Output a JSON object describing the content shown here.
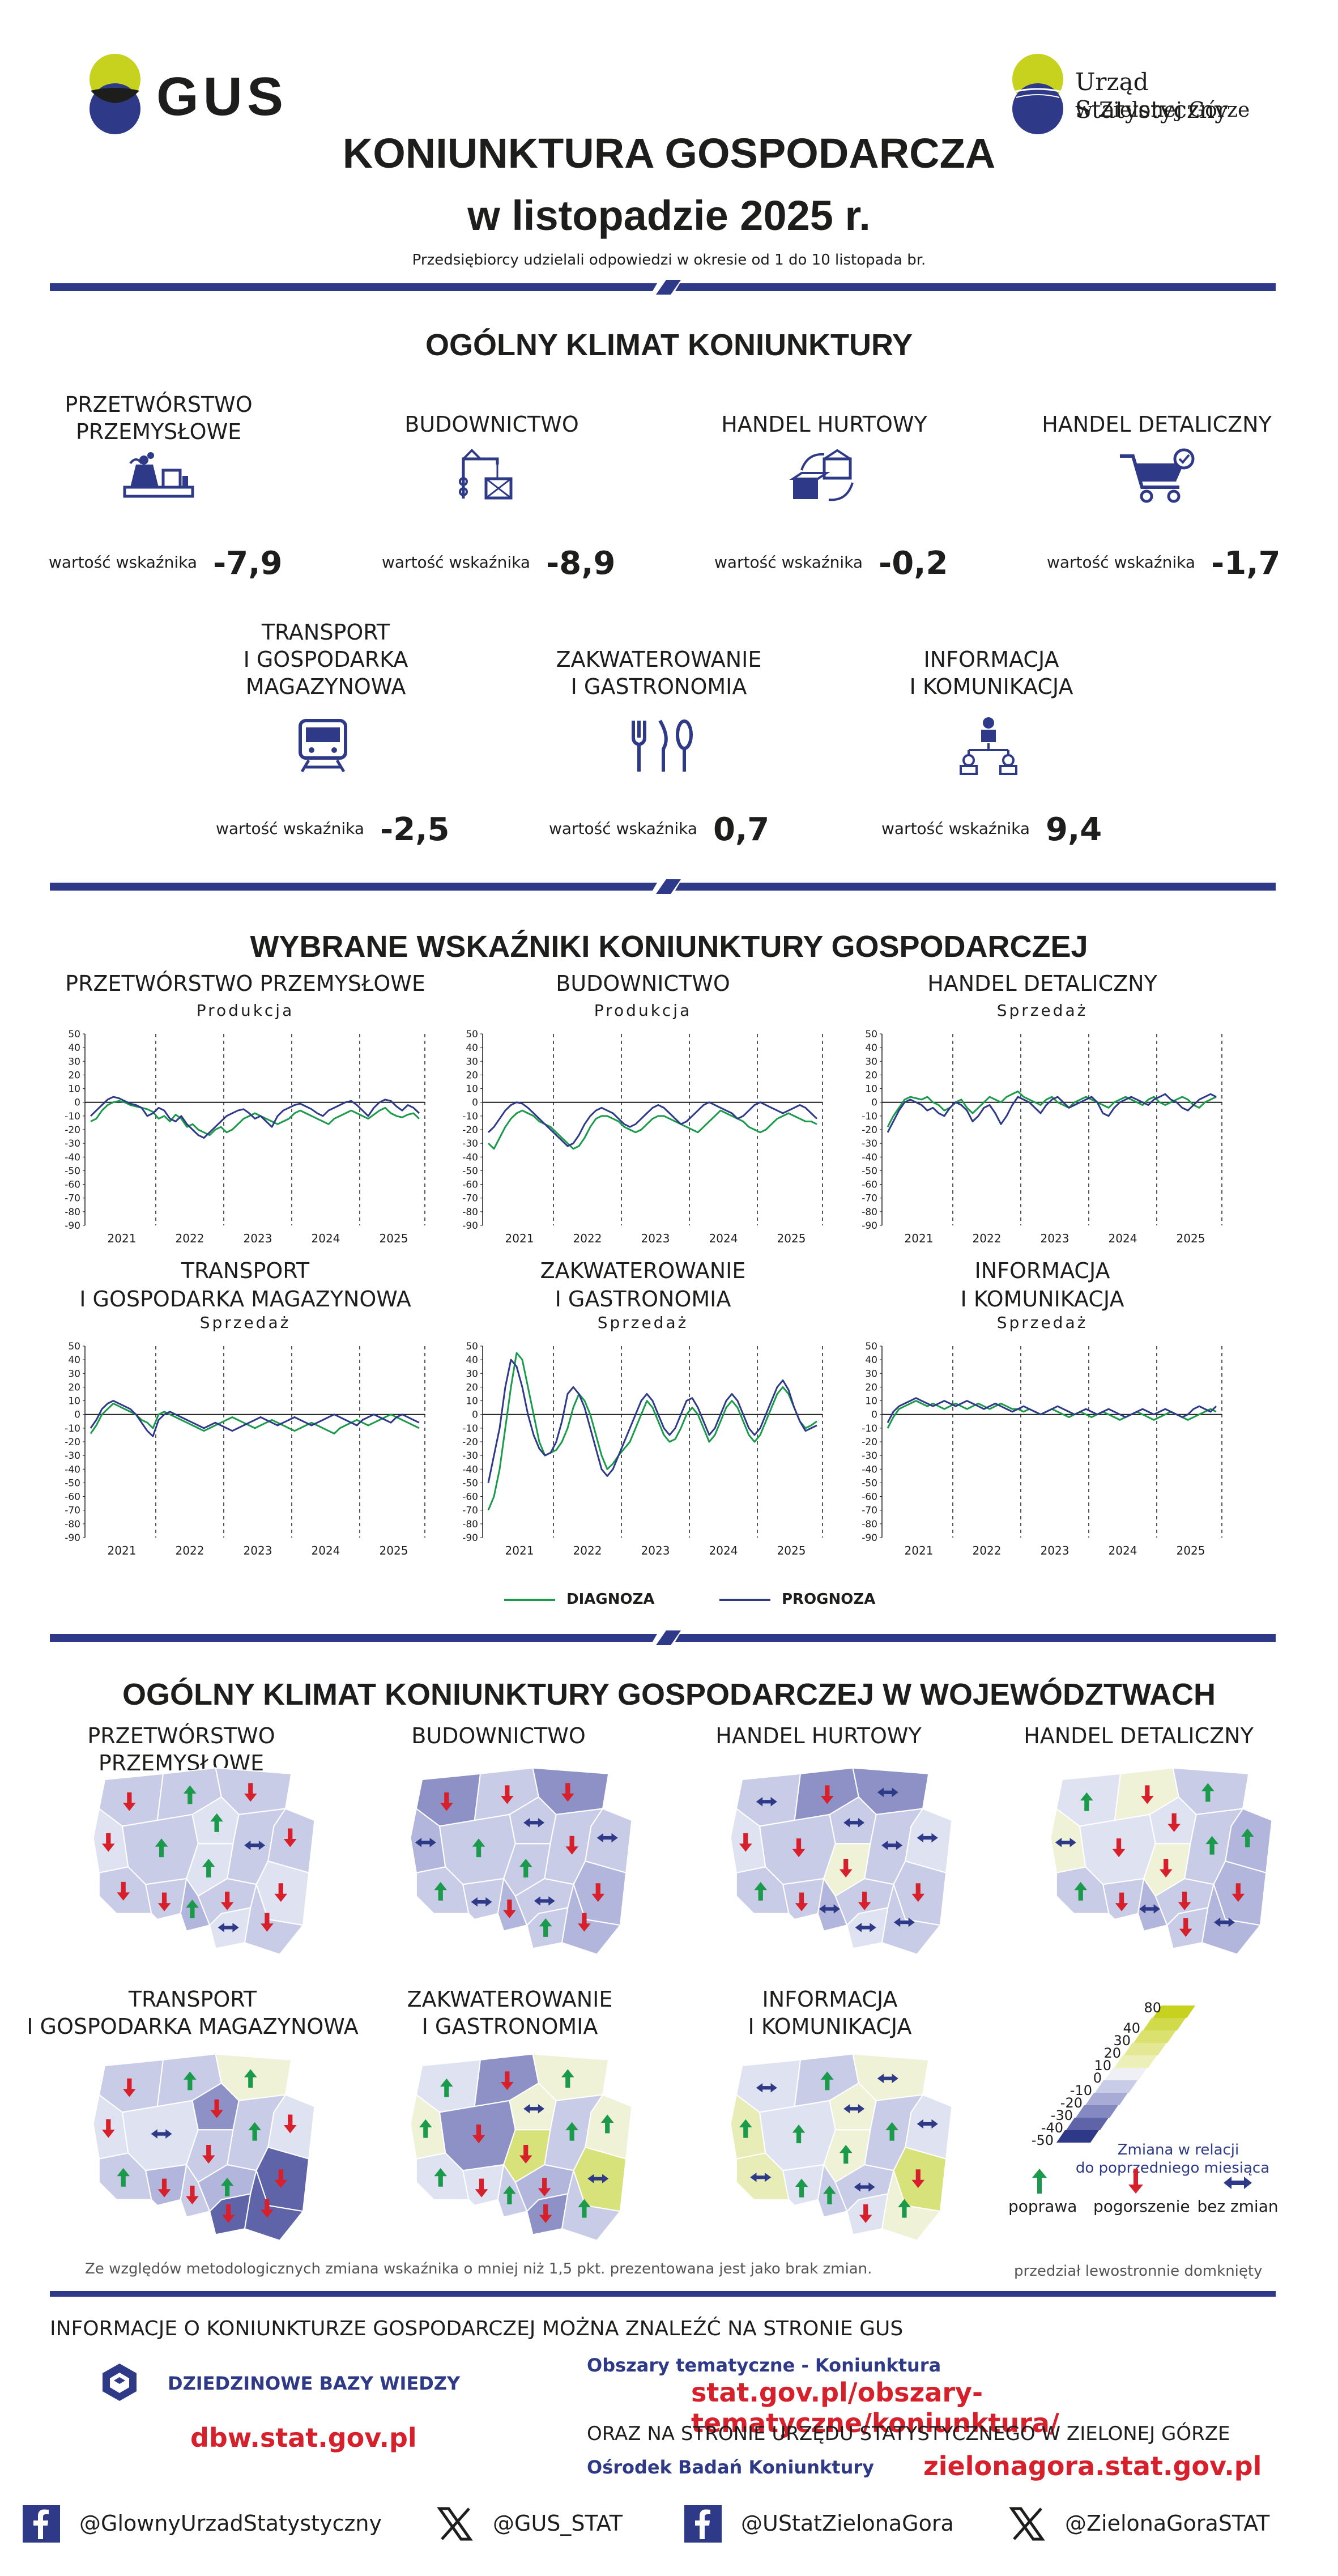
{
  "header": {
    "gus_logo_text": "GUS",
    "us_logo_line1": "Urząd Statystyczny",
    "us_logo_line2": "w Zielonej Górze",
    "title_line1": "KONIUNKTURA GOSPODARCZA",
    "title_line2": "w listopadzie 2025 r.",
    "subtitle": "Przedsiębiorcy udzielali odpowiedzi w okresie od 1 do 10 listopada br."
  },
  "climate": {
    "section_title": "OGÓLNY KLIMAT KONIUNKTURY",
    "indicator_label": "wartość wskaźnika",
    "sectors": [
      {
        "name_line1": "PRZETWÓRSTWO",
        "name_line2": "PRZEMYSŁOWE",
        "name_line3": "",
        "value": "-7,9",
        "icon": "factory-icon"
      },
      {
        "name_line1": "BUDOWNICTWO",
        "name_line2": "",
        "name_line3": "",
        "value": "-8,9",
        "icon": "crane-icon"
      },
      {
        "name_line1": "HANDEL HURTOWY",
        "name_line2": "",
        "name_line3": "",
        "value": "-0,2",
        "icon": "boxes-icon"
      },
      {
        "name_line1": "HANDEL DETALICZNY",
        "name_line2": "",
        "name_line3": "",
        "value": "-1,7",
        "icon": "cart-icon"
      },
      {
        "name_line1": "TRANSPORT",
        "name_line2": "I GOSPODARKA",
        "name_line3": "MAGAZYNOWA",
        "value": "-2,5",
        "icon": "train-icon"
      },
      {
        "name_line1": "ZAKWATEROWANIE",
        "name_line2": "I GASTRONOMIA",
        "name_line3": "",
        "value": "0,7",
        "icon": "cutlery-icon"
      },
      {
        "name_line1": "INFORMACJA",
        "name_line2": "I KOMUNIKACJA",
        "name_line3": "",
        "value": "9,4",
        "icon": "network-icon"
      }
    ]
  },
  "indicators": {
    "section_title": "WYBRANE WSKAŹNIKI KONIUNKTURY GOSPODARCZEJ",
    "legend": {
      "diagnoza": "DIAGNOZA",
      "prognoza": "PROGNOZA"
    },
    "colors": {
      "diagnoza": "#1a9a4a",
      "prognoza": "#2e3a87"
    }
  },
  "chart_data": [
    {
      "type": "line",
      "title_line1": "PRZETWÓRSTWO PRZEMYSŁOWE",
      "title_line2": "",
      "subtitle": "Produkcja",
      "yticks": [
        50,
        40,
        30,
        20,
        10,
        0,
        -10,
        -20,
        -30,
        -40,
        -50,
        -60,
        -70,
        -80,
        -90
      ],
      "ylim": [
        -90,
        50
      ],
      "xlabels": [
        "2021",
        "2022",
        "2023",
        "2024",
        "2025"
      ],
      "x_months": 59,
      "series": [
        {
          "name": "DIAGNOZA",
          "values": [
            -14,
            -12,
            -6,
            -2,
            0,
            1,
            0,
            -2,
            -3,
            -4,
            -5,
            -7,
            -12,
            -10,
            -14,
            -9,
            -12,
            -18,
            -16,
            -20,
            -22,
            -24,
            -20,
            -18,
            -22,
            -20,
            -16,
            -12,
            -10,
            -8,
            -10,
            -12,
            -14,
            -16,
            -14,
            -12,
            -8,
            -6,
            -8,
            -10,
            -12,
            -14,
            -16,
            -12,
            -10,
            -8,
            -6,
            -8,
            -10,
            -12,
            -9,
            -6,
            -4,
            -8,
            -10,
            -11,
            -9,
            -8,
            -12
          ]
        },
        {
          "name": "PROGNOZA",
          "values": [
            -10,
            -6,
            -2,
            2,
            4,
            3,
            1,
            -1,
            -2,
            -4,
            -10,
            -8,
            -4,
            -6,
            -12,
            -14,
            -10,
            -16,
            -20,
            -24,
            -26,
            -22,
            -18,
            -14,
            -10,
            -8,
            -6,
            -5,
            -8,
            -12,
            -10,
            -14,
            -18,
            -10,
            -6,
            -4,
            -2,
            -1,
            -3,
            -5,
            -8,
            -10,
            -6,
            -4,
            -2,
            0,
            1,
            -2,
            -6,
            -10,
            -4,
            0,
            2,
            1,
            -3,
            -6,
            -2,
            -4,
            -8
          ]
        }
      ]
    },
    {
      "type": "line",
      "title_line1": "BUDOWNICTWO",
      "title_line2": "",
      "subtitle": "Produkcja",
      "yticks": [
        50,
        40,
        30,
        20,
        10,
        0,
        -10,
        -20,
        -30,
        -40,
        -50,
        -60,
        -70,
        -80,
        -90
      ],
      "ylim": [
        -90,
        50
      ],
      "xlabels": [
        "2021",
        "2022",
        "2023",
        "2024",
        "2025"
      ],
      "x_months": 59,
      "series": [
        {
          "name": "DIAGNOZA",
          "values": [
            -30,
            -34,
            -26,
            -18,
            -12,
            -8,
            -6,
            -8,
            -10,
            -14,
            -16,
            -18,
            -22,
            -26,
            -30,
            -34,
            -32,
            -26,
            -18,
            -12,
            -10,
            -10,
            -12,
            -14,
            -18,
            -20,
            -22,
            -20,
            -16,
            -12,
            -10,
            -10,
            -12,
            -14,
            -16,
            -18,
            -20,
            -22,
            -18,
            -14,
            -10,
            -6,
            -8,
            -10,
            -12,
            -14,
            -18,
            -20,
            -22,
            -20,
            -16,
            -12,
            -10,
            -8,
            -10,
            -12,
            -14,
            -14,
            -16
          ]
        },
        {
          "name": "PROGNOZA",
          "values": [
            -22,
            -18,
            -12,
            -6,
            -2,
            0,
            -1,
            -4,
            -8,
            -12,
            -16,
            -20,
            -24,
            -28,
            -32,
            -30,
            -24,
            -16,
            -10,
            -6,
            -4,
            -6,
            -8,
            -12,
            -16,
            -18,
            -16,
            -12,
            -8,
            -4,
            -2,
            -4,
            -8,
            -12,
            -16,
            -14,
            -10,
            -6,
            -2,
            0,
            -2,
            -4,
            -6,
            -8,
            -12,
            -10,
            -6,
            -2,
            0,
            -2,
            -4,
            -6,
            -8,
            -6,
            -4,
            -2,
            -4,
            -8,
            -12
          ]
        }
      ]
    },
    {
      "type": "line",
      "title_line1": "HANDEL DETALICZNY",
      "title_line2": "",
      "subtitle": "Sprzedaż",
      "yticks": [
        50,
        40,
        30,
        20,
        10,
        0,
        -10,
        -20,
        -30,
        -40,
        -50,
        -60,
        -70,
        -80,
        -90
      ],
      "ylim": [
        -90,
        50
      ],
      "xlabels": [
        "2021",
        "2022",
        "2023",
        "2024",
        "2025"
      ],
      "x_months": 59,
      "series": [
        {
          "name": "DIAGNOZA",
          "values": [
            -18,
            -10,
            -4,
            2,
            4,
            3,
            2,
            4,
            0,
            -2,
            -6,
            -4,
            0,
            2,
            -4,
            -8,
            -4,
            0,
            4,
            2,
            0,
            4,
            6,
            8,
            4,
            2,
            0,
            -2,
            2,
            4,
            0,
            -2,
            -4,
            0,
            2,
            4,
            2,
            0,
            -2,
            -4,
            0,
            2,
            4,
            2,
            0,
            -2,
            2,
            4,
            0,
            -2,
            0,
            2,
            4,
            2,
            -2,
            -4,
            0,
            2,
            4
          ]
        },
        {
          "name": "PROGNOZA",
          "values": [
            -22,
            -14,
            -6,
            0,
            2,
            0,
            -2,
            -6,
            -4,
            -8,
            -10,
            -4,
            0,
            -2,
            -6,
            -14,
            -10,
            -4,
            -2,
            -8,
            -16,
            -10,
            -2,
            4,
            2,
            0,
            -4,
            -8,
            -2,
            2,
            4,
            0,
            -4,
            -2,
            0,
            2,
            4,
            0,
            -8,
            -10,
            -4,
            0,
            2,
            4,
            2,
            0,
            -2,
            2,
            4,
            6,
            2,
            0,
            -4,
            -6,
            -2,
            2,
            4,
            6,
            4
          ]
        }
      ]
    },
    {
      "type": "line",
      "title_line1": "TRANSPORT",
      "title_line2": "I GOSPODARKA MAGAZYNOWA",
      "subtitle": "Sprzedaż",
      "yticks": [
        50,
        40,
        30,
        20,
        10,
        0,
        -10,
        -20,
        -30,
        -40,
        -50,
        -60,
        -70,
        -80,
        -90
      ],
      "ylim": [
        -90,
        50
      ],
      "xlabels": [
        "2021",
        "2022",
        "2023",
        "2024",
        "2025"
      ],
      "x_months": 59,
      "series": [
        {
          "name": "DIAGNOZA",
          "values": [
            -14,
            -8,
            0,
            4,
            8,
            6,
            4,
            2,
            0,
            -4,
            -6,
            -10,
            0,
            2,
            0,
            -2,
            -4,
            -6,
            -8,
            -10,
            -12,
            -10,
            -8,
            -6,
            -4,
            -2,
            -4,
            -6,
            -8,
            -10,
            -8,
            -6,
            -4,
            -6,
            -8,
            -10,
            -12,
            -10,
            -8,
            -6,
            -8,
            -10,
            -12,
            -14,
            -10,
            -8,
            -6,
            -4,
            -6,
            -8,
            -6,
            -4,
            -2,
            0,
            -2,
            -4,
            -6,
            -8,
            -10
          ]
        },
        {
          "name": "PROGNOZA",
          "values": [
            -10,
            -4,
            4,
            8,
            10,
            8,
            6,
            4,
            0,
            -6,
            -12,
            -16,
            -4,
            0,
            2,
            0,
            -2,
            -4,
            -6,
            -8,
            -10,
            -8,
            -6,
            -8,
            -10,
            -12,
            -10,
            -8,
            -6,
            -4,
            -2,
            -4,
            -6,
            -8,
            -6,
            -4,
            -2,
            -4,
            -6,
            -8,
            -6,
            -4,
            -2,
            0,
            -2,
            -4,
            -6,
            -8,
            -4,
            -2,
            0,
            -2,
            -4,
            -6,
            -2,
            0,
            -2,
            -4,
            -6
          ]
        }
      ]
    },
    {
      "type": "line",
      "title_line1": "ZAKWATEROWANIE",
      "title_line2": "I GASTRONOMIA",
      "subtitle": "Sprzedaż",
      "yticks": [
        50,
        40,
        30,
        20,
        10,
        0,
        -10,
        -20,
        -30,
        -40,
        -50,
        -60,
        -70,
        -80,
        -90
      ],
      "ylim": [
        -90,
        50
      ],
      "xlabels": [
        "2021",
        "2022",
        "2023",
        "2024",
        "2025"
      ],
      "x_months": 59,
      "series": [
        {
          "name": "DIAGNOZA",
          "values": [
            -70,
            -60,
            -40,
            -10,
            20,
            45,
            40,
            20,
            0,
            -20,
            -30,
            -28,
            -26,
            -20,
            -10,
            5,
            15,
            10,
            0,
            -15,
            -30,
            -40,
            -36,
            -30,
            -25,
            -20,
            -10,
            0,
            10,
            5,
            -5,
            -15,
            -20,
            -18,
            -10,
            0,
            5,
            0,
            -10,
            -20,
            -15,
            -5,
            5,
            10,
            5,
            -5,
            -15,
            -20,
            -15,
            -5,
            5,
            15,
            20,
            15,
            5,
            -5,
            -10,
            -8,
            -5
          ]
        },
        {
          "name": "PROGNOZA",
          "values": [
            -50,
            -30,
            -10,
            20,
            40,
            35,
            20,
            0,
            -15,
            -25,
            -30,
            -28,
            -20,
            -5,
            15,
            20,
            15,
            5,
            -10,
            -25,
            -40,
            -45,
            -40,
            -30,
            -20,
            -10,
            0,
            10,
            15,
            10,
            0,
            -10,
            -15,
            -10,
            0,
            10,
            12,
            5,
            -5,
            -15,
            -10,
            0,
            10,
            15,
            10,
            0,
            -10,
            -15,
            -10,
            0,
            10,
            20,
            25,
            18,
            5,
            -5,
            -12,
            -10,
            -8
          ]
        }
      ]
    },
    {
      "type": "line",
      "title_line1": "INFORMACJA",
      "title_line2": "I KOMUNIKACJA",
      "subtitle": "Sprzedaż",
      "yticks": [
        50,
        40,
        30,
        20,
        10,
        0,
        -10,
        -20,
        -30,
        -40,
        -50,
        -60,
        -70,
        -80,
        -90
      ],
      "ylim": [
        -90,
        50
      ],
      "xlabels": [
        "2021",
        "2022",
        "2023",
        "2024",
        "2025"
      ],
      "x_months": 59,
      "series": [
        {
          "name": "DIAGNOZA",
          "values": [
            -10,
            -2,
            4,
            6,
            8,
            10,
            8,
            6,
            8,
            6,
            4,
            6,
            8,
            6,
            4,
            6,
            8,
            6,
            4,
            6,
            8,
            6,
            4,
            4,
            2,
            4,
            2,
            0,
            2,
            4,
            2,
            0,
            -2,
            0,
            2,
            0,
            -2,
            0,
            2,
            0,
            -2,
            -4,
            -2,
            0,
            2,
            0,
            -2,
            -4,
            -2,
            0,
            2,
            0,
            -2,
            -4,
            -2,
            0,
            2,
            4,
            2
          ]
        },
        {
          "name": "PROGNOZA",
          "values": [
            -6,
            2,
            6,
            8,
            10,
            12,
            10,
            8,
            6,
            8,
            10,
            8,
            6,
            8,
            10,
            8,
            6,
            4,
            6,
            8,
            6,
            4,
            2,
            4,
            6,
            4,
            2,
            0,
            2,
            4,
            6,
            4,
            2,
            0,
            2,
            4,
            2,
            0,
            2,
            4,
            2,
            0,
            -2,
            0,
            2,
            4,
            2,
            0,
            2,
            4,
            2,
            0,
            -2,
            0,
            4,
            6,
            4,
            2,
            6
          ]
        }
      ]
    }
  ],
  "regions": {
    "section_title": "OGÓLNY KLIMAT KONIUNKTURY GOSPODARCZEJ W WOJEWÓDZTWACH",
    "maps": [
      {
        "title_line1": "PRZETWÓRSTWO PRZEMYSŁOWE",
        "title_line2": ""
      },
      {
        "title_line1": "BUDOWNICTWO",
        "title_line2": ""
      },
      {
        "title_line1": "HANDEL HURTOWY",
        "title_line2": ""
      },
      {
        "title_line1": "HANDEL DETALICZNY",
        "title_line2": ""
      },
      {
        "title_line1": "TRANSPORT",
        "title_line2": "I GOSPODARKA MAGAZYNOWA"
      },
      {
        "title_line1": "ZAKWATEROWANIE",
        "title_line2": "I GASTRONOMIA"
      },
      {
        "title_line1": "INFORMACJA",
        "title_line2": "I KOMUNIKACJA"
      }
    ],
    "scale_labels": [
      "80",
      "40",
      "30",
      "20",
      "10",
      "0",
      "-10",
      "-20",
      "-30",
      "-40",
      "-50"
    ],
    "scale_note_line1": "Zmiana w relacji",
    "scale_note_line2": "do poprzedniego miesiąca",
    "arrow_up_label": "poprawa",
    "arrow_down_label": "pogorszenie",
    "arrow_both_label": "bez zmian",
    "footnote": "Ze względów metodologicznych zmiana wskaźnika o mniej niż 1,5 pkt. prezentowana jest jako brak zmian.",
    "interval_note": "przedział lewostronnie domknięty"
  },
  "footer": {
    "info_line": "INFORMACJE O KONIUNKTURZE GOSPODARCZEJ MOŻNA ZNALEŹĆ NA STRONIE GUS",
    "dbw_label": "DZIEDZINOWE BAZY WIEDZY",
    "dbw_url": "dbw.stat.gov.pl",
    "obszary_label": "Obszary tematyczne - Koniunktura",
    "obszary_url": "stat.gov.pl/obszary-tematyczne/koniunktura/",
    "oraz_line": "ORAZ NA STRONIE URZĘDU STATYSTYCZNEGO W ZIELONEJ GÓRZE",
    "osrodek_label": "Ośrodek Badań Koniunktury",
    "zg_url": "zielonagora.stat.gov.pl",
    "social": [
      "@GlownyUrzadStatystyczny",
      "@GUS_STAT",
      "@UStatZielonaGora",
      "@ZielonaGoraSTAT"
    ]
  }
}
